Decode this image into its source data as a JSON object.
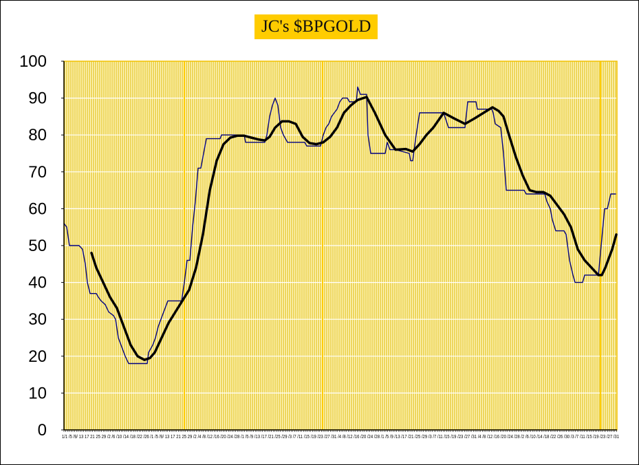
{
  "chart_data": {
    "type": "line",
    "title": "JC's $BPGOLD",
    "xlabel": "",
    "ylabel": "",
    "ylim": [
      0,
      100
    ],
    "xlim": [
      0,
      201
    ],
    "yticks": [
      "0",
      "10",
      "20",
      "30",
      "40",
      "50",
      "60",
      "70",
      "80",
      "90",
      "100"
    ],
    "xtick_labels_text": "1/1 /5 /9/ 13 17 21 25 29 /2 /6 /10 /14 /18 /22 /26 /1 /5 /9/ 13 17 21 25 29 /2 /4 /8 /12 /16 /20 /24 /28 /1 /5 /9 /13 /17 /21 /25 /29 /3 /7 /11 /15 /19 /23 /27 /31 /4 /8 /12 /16 /20 /24 /28 /1 /5 /9 /13 /17 /21 /25 /29 /3 /7 /11 /15 /19 /23 /27 /31 /4 /8 /12 /16 /20 /24 /28 /2 /6 /10 /14 /18 /22 /26 /30 /3 /7 /11 /15 /19 /23 /27 /31",
    "grid": {
      "horizontal": true,
      "vertical": true
    },
    "background_color": "#EFDC6A",
    "series": [
      {
        "style": "thin-step",
        "color": "#000080",
        "points": [
          [
            0,
            56
          ],
          [
            1,
            55
          ],
          [
            2,
            50
          ],
          [
            5.5,
            50
          ],
          [
            6.75,
            49
          ],
          [
            7.75,
            45
          ],
          [
            8.5,
            40
          ],
          [
            9.5,
            37
          ],
          [
            11.75,
            37
          ],
          [
            12.5,
            36
          ],
          [
            13.5,
            35
          ],
          [
            15,
            34
          ],
          [
            16.25,
            32
          ],
          [
            18,
            31
          ],
          [
            18.75,
            30
          ],
          [
            19.75,
            25
          ],
          [
            21.25,
            22
          ],
          [
            22.25,
            20
          ],
          [
            23.5,
            18
          ],
          [
            30.25,
            18
          ],
          [
            30.75,
            21
          ],
          [
            32.25,
            23
          ],
          [
            33.25,
            25
          ],
          [
            34.25,
            28
          ],
          [
            35.75,
            31
          ],
          [
            36.75,
            33
          ],
          [
            37.75,
            35
          ],
          [
            42.75,
            35
          ],
          [
            43.75,
            40
          ],
          [
            44.75,
            46
          ],
          [
            45.75,
            46
          ],
          [
            46.75,
            55
          ],
          [
            47.75,
            62
          ],
          [
            48.75,
            71
          ],
          [
            49.75,
            71
          ],
          [
            50.75,
            75
          ],
          [
            51.75,
            79
          ],
          [
            56.75,
            79
          ],
          [
            57.25,
            80
          ],
          [
            65.5,
            80
          ],
          [
            66,
            78
          ],
          [
            73,
            78
          ],
          [
            73.75,
            80
          ],
          [
            74.75,
            85
          ],
          [
            75.75,
            88
          ],
          [
            76.75,
            90
          ],
          [
            77.75,
            88
          ],
          [
            78.75,
            82
          ],
          [
            79.75,
            80
          ],
          [
            81.25,
            78
          ],
          [
            87.5,
            78
          ],
          [
            88.25,
            77
          ],
          [
            93.25,
            77
          ],
          [
            94.25,
            80
          ],
          [
            95.25,
            82
          ],
          [
            96.25,
            83
          ],
          [
            97.25,
            85
          ],
          [
            98.25,
            86
          ],
          [
            99.25,
            87
          ],
          [
            100.25,
            89
          ],
          [
            101.25,
            90
          ],
          [
            103,
            90
          ],
          [
            103.75,
            89
          ],
          [
            106.25,
            89
          ],
          [
            106.75,
            93
          ],
          [
            107.75,
            91
          ],
          [
            110,
            91
          ],
          [
            110.5,
            80
          ],
          [
            111.5,
            75
          ],
          [
            116.75,
            75
          ],
          [
            117.5,
            78
          ],
          [
            118.5,
            76
          ],
          [
            120.5,
            76
          ],
          [
            125.5,
            75
          ],
          [
            126,
            73
          ],
          [
            126.75,
            73
          ],
          [
            128,
            80
          ],
          [
            129.25,
            86
          ],
          [
            138,
            86
          ],
          [
            139.75,
            82
          ],
          [
            145.75,
            82
          ],
          [
            146.75,
            89
          ],
          [
            149.75,
            89
          ],
          [
            150.25,
            87
          ],
          [
            155.5,
            87
          ],
          [
            156,
            86
          ],
          [
            156.75,
            83
          ],
          [
            158.75,
            82
          ],
          [
            159.75,
            75
          ],
          [
            160.75,
            65
          ],
          [
            167.25,
            65
          ],
          [
            168,
            64
          ],
          [
            174.75,
            64
          ],
          [
            175.5,
            62
          ],
          [
            176.75,
            60
          ],
          [
            177.5,
            57
          ],
          [
            178.75,
            54
          ],
          [
            181.75,
            54
          ],
          [
            182.5,
            53
          ],
          [
            183.75,
            46
          ],
          [
            185,
            42
          ],
          [
            185.75,
            40
          ],
          [
            188.5,
            40
          ],
          [
            189.25,
            42
          ],
          [
            194.25,
            42
          ],
          [
            195.25,
            50
          ],
          [
            196.5,
            60
          ],
          [
            197.5,
            60
          ],
          [
            198.75,
            64
          ],
          [
            200.5,
            64
          ]
        ]
      },
      {
        "style": "thick-smooth",
        "color": "#000000",
        "points": [
          [
            10,
            48
          ],
          [
            11.75,
            44
          ],
          [
            14.25,
            40
          ],
          [
            16.75,
            36
          ],
          [
            19.25,
            33
          ],
          [
            21.75,
            28
          ],
          [
            24.25,
            23
          ],
          [
            26.75,
            20
          ],
          [
            29.25,
            19
          ],
          [
            31.25,
            19.5
          ],
          [
            33,
            21
          ],
          [
            35.5,
            25
          ],
          [
            38,
            29
          ],
          [
            40.5,
            32
          ],
          [
            43,
            35
          ],
          [
            45.5,
            38
          ],
          [
            48,
            44
          ],
          [
            50.5,
            53
          ],
          [
            53,
            65
          ],
          [
            55.5,
            73
          ],
          [
            58,
            77.5
          ],
          [
            60.5,
            79.3
          ],
          [
            63,
            79.8
          ],
          [
            65.5,
            79.8
          ],
          [
            68,
            79.3
          ],
          [
            70.5,
            78.8
          ],
          [
            73,
            78.5
          ],
          [
            74.75,
            79.5
          ],
          [
            76.75,
            82
          ],
          [
            79.25,
            83.7
          ],
          [
            81.75,
            83.7
          ],
          [
            84.25,
            83
          ],
          [
            86.75,
            79.5
          ],
          [
            89.25,
            77.8
          ],
          [
            91.75,
            77.5
          ],
          [
            94.25,
            78
          ],
          [
            96.75,
            79.5
          ],
          [
            99.25,
            82
          ],
          [
            101.75,
            86
          ],
          [
            104.25,
            88
          ],
          [
            106.75,
            89.5
          ],
          [
            110,
            90.3
          ],
          [
            113,
            86
          ],
          [
            116.75,
            80
          ],
          [
            120.5,
            76
          ],
          [
            124.25,
            76.2
          ],
          [
            126.75,
            75.5
          ],
          [
            129.25,
            77.5
          ],
          [
            131.75,
            80
          ],
          [
            134.25,
            82
          ],
          [
            138,
            86
          ],
          [
            141.75,
            84.5
          ],
          [
            145.75,
            83
          ],
          [
            149.25,
            84.5
          ],
          [
            155.75,
            87.5
          ],
          [
            158,
            86.5
          ],
          [
            159.75,
            85
          ],
          [
            161.75,
            80
          ],
          [
            164.25,
            74
          ],
          [
            166.75,
            69
          ],
          [
            169.25,
            65
          ],
          [
            171.75,
            64.5
          ],
          [
            174.25,
            64.5
          ],
          [
            176.75,
            63.5
          ],
          [
            179.25,
            61
          ],
          [
            181.75,
            58.5
          ],
          [
            184.25,
            55
          ],
          [
            186.75,
            49
          ],
          [
            189.25,
            46
          ],
          [
            191.75,
            44
          ],
          [
            194.25,
            42
          ],
          [
            195.5,
            42
          ],
          [
            196.75,
            44
          ],
          [
            199.25,
            49
          ],
          [
            200.75,
            53
          ]
        ]
      }
    ]
  }
}
